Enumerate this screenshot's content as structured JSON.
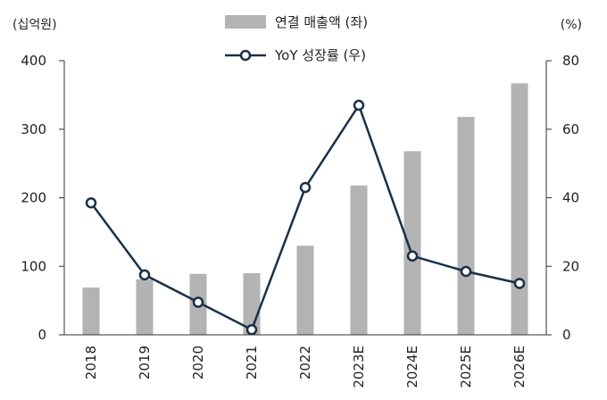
{
  "chart_data": {
    "type": "bar+line",
    "categories": [
      "2018",
      "2019",
      "2020",
      "2021",
      "2022",
      "2023E",
      "2024E",
      "2025E",
      "2026E"
    ],
    "series": [
      {
        "name": "연결 매출액 (좌)",
        "type": "bar",
        "axis": "left",
        "color": "#b3b3b3",
        "values": [
          69,
          81,
          89,
          90,
          130,
          218,
          268,
          318,
          367
        ]
      },
      {
        "name": "YoY 성장률 (우)",
        "type": "line",
        "axis": "right",
        "color": "#1a3047",
        "values": [
          38.5,
          17.5,
          9.5,
          1.5,
          43,
          67,
          23,
          18.5,
          15
        ]
      }
    ],
    "y_left": {
      "unit": "(십억원)",
      "ylim": [
        0,
        400
      ],
      "ticks": [
        "0",
        "100",
        "200",
        "300",
        "400"
      ]
    },
    "y_right": {
      "unit": "(%)",
      "ylim": [
        0,
        80
      ],
      "ticks": [
        "0",
        "20",
        "40",
        "60",
        "80"
      ]
    },
    "grid": false,
    "legend_position": "top-center"
  }
}
